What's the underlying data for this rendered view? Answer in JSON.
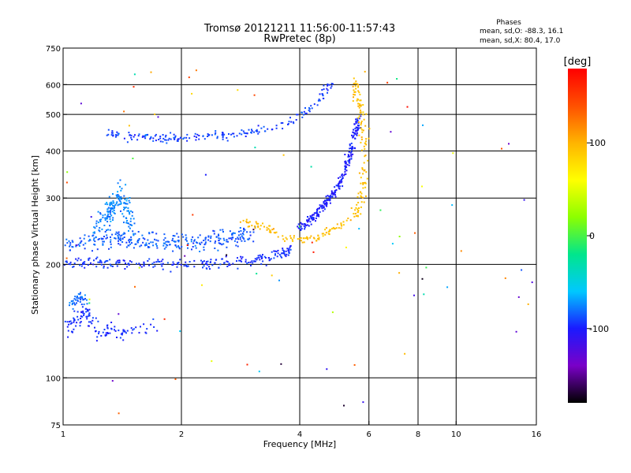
{
  "chart_data": {
    "type": "scatter",
    "title": "Tromsø 20121211 11:56:00-11:57:43",
    "subtitle": "RwPretec (8p)",
    "stats": {
      "heading": "Phases",
      "line1": "mean, sd,O: -88.3, 16.1",
      "line2": "mean, sd,X:  80.4, 17.0"
    },
    "xlabel": "Frequency [MHz]",
    "ylabel": "Stationary phase Virtual Height [km]",
    "x_scale": "log",
    "y_scale": "log",
    "xlim": [
      1,
      16
    ],
    "ylim": [
      75,
      750
    ],
    "x_ticks": [
      1,
      2,
      4,
      6,
      8,
      10,
      16
    ],
    "y_ticks": [
      75,
      100,
      200,
      300,
      400,
      500,
      600,
      750
    ],
    "x_grid": [
      2,
      4,
      6,
      8,
      10
    ],
    "y_grid": [
      100,
      200,
      300,
      400,
      500,
      600
    ],
    "grid": true,
    "colorbar": {
      "label": "[deg]",
      "range": [
        -180,
        180
      ],
      "ticks": [
        100,
        0,
        -100
      ],
      "colors": [
        "#000000",
        "#7a00c8",
        "#1a1aff",
        "#00c8ff",
        "#00e68c",
        "#8cff00",
        "#ffff00",
        "#ffb400",
        "#ff5000",
        "#ff0000"
      ]
    },
    "traces": [
      {
        "name": "",
        "phase": -95,
        "scatter_f": 0.025,
        "scatter_h": 0.05,
        "count": 240,
        "points": [
          [
            1.0,
            205
          ],
          [
            1.1,
            203
          ],
          [
            1.2,
            202
          ],
          [
            1.35,
            201
          ],
          [
            1.5,
            200
          ],
          [
            1.7,
            200
          ],
          [
            2.0,
            200
          ],
          [
            2.3,
            201
          ],
          [
            2.6,
            202
          ],
          [
            3.0,
            205
          ],
          [
            3.3,
            208
          ],
          [
            3.6,
            213
          ],
          [
            3.8,
            220
          ]
        ]
      },
      {
        "name": "",
        "phase": -85,
        "scatter_f": 0.08,
        "scatter_h": 0.08,
        "count": 300,
        "points": [
          [
            1.0,
            225
          ],
          [
            1.2,
            230
          ],
          [
            1.4,
            235
          ],
          [
            1.6,
            230
          ],
          [
            1.9,
            228
          ],
          [
            2.2,
            230
          ],
          [
            2.6,
            235
          ],
          [
            3.0,
            240
          ]
        ]
      },
      {
        "name": "",
        "phase": -75,
        "scatter_f": 0.04,
        "scatter_h": 0.12,
        "count": 160,
        "points": [
          [
            1.2,
            250
          ],
          [
            1.3,
            270
          ],
          [
            1.35,
            290
          ],
          [
            1.4,
            310
          ],
          [
            1.45,
            280
          ],
          [
            1.5,
            250
          ]
        ]
      },
      {
        "name": "",
        "phase": -92,
        "scatter_f": 0.04,
        "scatter_h": 0.04,
        "count": 200,
        "points": [
          [
            1.3,
            450
          ],
          [
            1.4,
            440
          ],
          [
            1.6,
            435
          ],
          [
            1.8,
            432
          ],
          [
            2.0,
            433
          ],
          [
            2.3,
            438
          ],
          [
            2.6,
            440
          ],
          [
            3.0,
            448
          ],
          [
            3.4,
            460
          ],
          [
            3.8,
            480
          ],
          [
            4.2,
            510
          ],
          [
            4.6,
            560
          ],
          [
            4.8,
            600
          ]
        ]
      },
      {
        "name": "",
        "phase": -100,
        "scatter_f": 0.025,
        "scatter_h": 0.05,
        "count": 260,
        "points": [
          [
            4.0,
            250
          ],
          [
            4.3,
            265
          ],
          [
            4.6,
            285
          ],
          [
            4.9,
            310
          ],
          [
            5.2,
            350
          ],
          [
            5.4,
            400
          ],
          [
            5.55,
            450
          ],
          [
            5.65,
            480
          ]
        ]
      },
      {
        "name": "",
        "phase": 95,
        "scatter_f": 0.04,
        "scatter_h": 0.03,
        "count": 220,
        "points": [
          [
            2.9,
            260
          ],
          [
            3.1,
            255
          ],
          [
            3.4,
            245
          ],
          [
            3.7,
            235
          ],
          [
            4.0,
            232
          ],
          [
            4.4,
            235
          ],
          [
            4.8,
            245
          ],
          [
            5.2,
            255
          ],
          [
            5.5,
            270
          ],
          [
            5.7,
            290
          ],
          [
            5.8,
            320
          ],
          [
            5.85,
            370
          ],
          [
            5.85,
            430
          ],
          [
            5.75,
            500
          ],
          [
            5.6,
            560
          ],
          [
            5.55,
            620
          ]
        ]
      },
      {
        "name": "",
        "phase": -95,
        "scatter_f": 0.04,
        "scatter_h": 0.08,
        "count": 120,
        "points": [
          [
            1.0,
            130
          ],
          [
            1.05,
            140
          ],
          [
            1.1,
            145
          ],
          [
            1.15,
            150
          ],
          [
            1.2,
            135
          ],
          [
            1.3,
            133
          ],
          [
            1.4,
            132
          ],
          [
            1.55,
            135
          ],
          [
            1.7,
            135
          ]
        ]
      },
      {
        "name": "",
        "phase": -80,
        "scatter_f": 0.03,
        "scatter_h": 0.05,
        "count": 40,
        "points": [
          [
            1.05,
            155
          ],
          [
            1.1,
            165
          ],
          [
            1.15,
            160
          ]
        ]
      }
    ],
    "noise": {
      "count": 90,
      "xlim": [
        1,
        16
      ],
      "ylim": [
        80,
        680
      ]
    }
  }
}
